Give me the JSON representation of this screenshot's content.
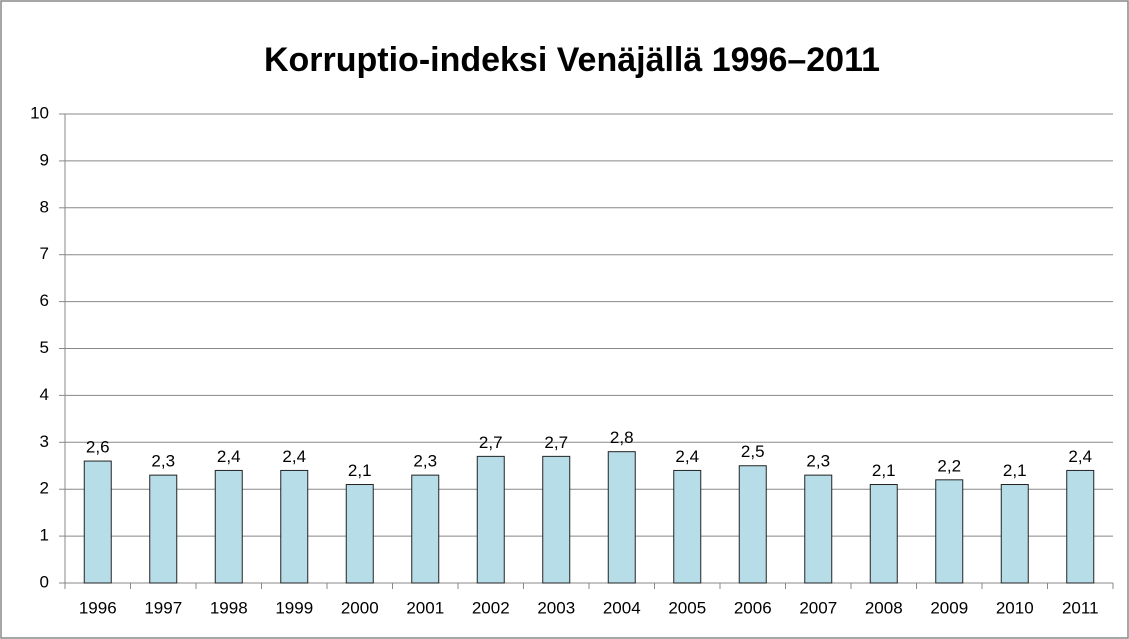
{
  "chart_data": {
    "type": "bar",
    "title": "Korruptio-indeksi Venäjällä 1996–2011",
    "categories": [
      "1996",
      "1997",
      "1998",
      "1999",
      "2000",
      "2001",
      "2002",
      "2003",
      "2004",
      "2005",
      "2006",
      "2007",
      "2008",
      "2009",
      "2010",
      "2011"
    ],
    "values": [
      2.6,
      2.3,
      2.4,
      2.4,
      2.1,
      2.3,
      2.7,
      2.7,
      2.8,
      2.4,
      2.5,
      2.3,
      2.1,
      2.2,
      2.1,
      2.4
    ],
    "value_labels": [
      "2,6",
      "2,3",
      "2,4",
      "2,4",
      "2,1",
      "2,3",
      "2,7",
      "2,7",
      "2,8",
      "2,4",
      "2,5",
      "2,3",
      "2,1",
      "2,2",
      "2,1",
      "2,4"
    ],
    "color": "#b7dde8",
    "ylim": [
      0,
      10
    ],
    "yticks": [
      0,
      1,
      2,
      3,
      4,
      5,
      6,
      7,
      8,
      9,
      10
    ],
    "grid": true
  }
}
